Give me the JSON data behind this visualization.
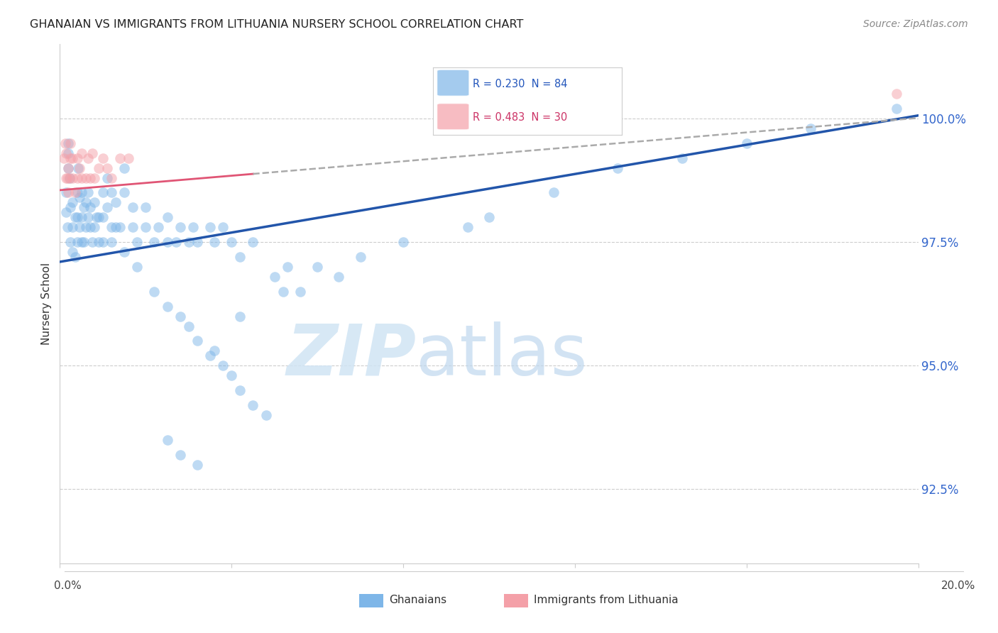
{
  "title": "GHANAIAN VS IMMIGRANTS FROM LITHUANIA NURSERY SCHOOL CORRELATION CHART",
  "source": "Source: ZipAtlas.com",
  "ylabel": "Nursery School",
  "ytick_labels": [
    "100.0%",
    "97.5%",
    "95.0%",
    "92.5%"
  ],
  "ytick_values": [
    100.0,
    97.5,
    95.0,
    92.5
  ],
  "xlim": [
    0.0,
    20.0
  ],
  "ylim": [
    91.0,
    101.5
  ],
  "blue_color": "#7EB6E8",
  "pink_color": "#F4A0A8",
  "blue_line_color": "#2255AA",
  "pink_line_color": "#E05575",
  "dash_color": "#AAAAAA",
  "pink_solid_end": 4.5,
  "blue_intercept": 97.1,
  "blue_slope": 0.148,
  "pink_intercept": 98.55,
  "pink_slope": 0.073,
  "ghanaian_x": [
    0.15,
    0.15,
    0.18,
    0.2,
    0.2,
    0.2,
    0.22,
    0.25,
    0.25,
    0.3,
    0.3,
    0.3,
    0.35,
    0.35,
    0.4,
    0.4,
    0.4,
    0.42,
    0.45,
    0.45,
    0.5,
    0.5,
    0.5,
    0.55,
    0.55,
    0.6,
    0.6,
    0.65,
    0.65,
    0.7,
    0.7,
    0.75,
    0.8,
    0.8,
    0.85,
    0.9,
    0.9,
    1.0,
    1.0,
    1.0,
    1.1,
    1.1,
    1.2,
    1.2,
    1.3,
    1.3,
    1.4,
    1.5,
    1.5,
    1.7,
    1.7,
    1.8,
    2.0,
    2.0,
    2.2,
    2.3,
    2.5,
    2.5,
    2.7,
    2.8,
    3.0,
    3.1,
    3.2,
    3.5,
    3.6,
    3.8,
    4.0,
    4.2,
    4.5,
    5.0,
    5.3,
    5.6,
    6.0,
    6.5,
    7.0,
    8.0,
    9.5,
    10.0,
    11.5,
    13.0,
    14.5,
    16.0,
    17.5,
    19.5
  ],
  "ghanaian_y": [
    98.1,
    98.5,
    97.8,
    99.0,
    99.3,
    99.5,
    98.8,
    97.5,
    98.2,
    97.3,
    97.8,
    98.3,
    97.2,
    98.0,
    97.5,
    98.0,
    98.5,
    99.0,
    97.8,
    98.4,
    97.5,
    98.0,
    98.5,
    97.5,
    98.2,
    97.8,
    98.3,
    98.0,
    98.5,
    97.8,
    98.2,
    97.5,
    97.8,
    98.3,
    98.0,
    97.5,
    98.0,
    97.5,
    98.0,
    98.5,
    98.2,
    98.8,
    97.8,
    98.5,
    97.8,
    98.3,
    97.8,
    98.5,
    99.0,
    97.8,
    98.2,
    97.5,
    97.8,
    98.2,
    97.5,
    97.8,
    97.5,
    98.0,
    97.5,
    97.8,
    97.5,
    97.8,
    97.5,
    97.8,
    97.5,
    97.8,
    97.5,
    97.2,
    97.5,
    96.8,
    97.0,
    96.5,
    97.0,
    96.8,
    97.2,
    97.5,
    97.8,
    98.0,
    98.5,
    99.0,
    99.2,
    99.5,
    99.8,
    100.2
  ],
  "ghanaian_y_low": [
    97.5,
    97.3,
    97.0,
    96.5,
    96.2,
    96.0,
    95.8,
    95.5,
    95.2,
    95.0,
    94.8,
    94.5,
    94.2,
    94.0,
    93.5,
    93.2,
    93.0,
    95.3,
    96.0,
    96.5
  ],
  "ghanaian_x_low": [
    1.2,
    1.5,
    1.8,
    2.2,
    2.5,
    2.8,
    3.0,
    3.2,
    3.5,
    3.8,
    4.0,
    4.2,
    4.5,
    4.8,
    2.5,
    2.8,
    3.2,
    3.6,
    4.2,
    5.2
  ],
  "lithuania_x": [
    0.1,
    0.12,
    0.15,
    0.15,
    0.18,
    0.2,
    0.2,
    0.22,
    0.25,
    0.25,
    0.3,
    0.3,
    0.35,
    0.4,
    0.4,
    0.45,
    0.5,
    0.5,
    0.6,
    0.65,
    0.7,
    0.75,
    0.8,
    0.9,
    1.0,
    1.1,
    1.2,
    1.4,
    1.6,
    19.5
  ],
  "lithuania_y": [
    99.2,
    99.5,
    98.8,
    99.3,
    98.8,
    98.5,
    99.0,
    98.8,
    99.2,
    99.5,
    98.8,
    99.2,
    98.5,
    98.8,
    99.2,
    99.0,
    98.8,
    99.3,
    98.8,
    99.2,
    98.8,
    99.3,
    98.8,
    99.0,
    99.2,
    99.0,
    98.8,
    99.2,
    99.2,
    100.5
  ]
}
